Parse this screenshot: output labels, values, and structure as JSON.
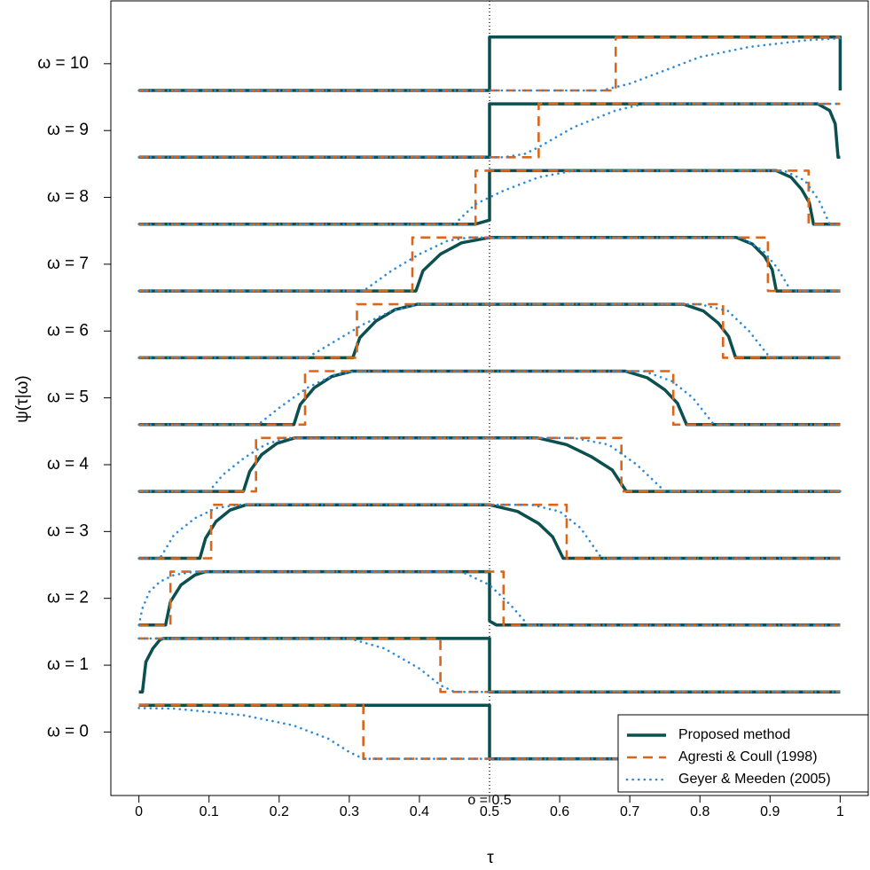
{
  "chart_data": {
    "type": "line",
    "x_label": "τ",
    "y_label": "ψ(τ|ω)",
    "xlim": [
      -0.04,
      1.04
    ],
    "ylim": [
      -0.95,
      10.94
    ],
    "xticks": [
      0,
      0.1,
      0.2,
      0.3,
      0.4,
      0.5,
      0.6,
      0.7,
      0.8,
      0.9,
      1
    ],
    "yticks": [
      {
        "value": 0,
        "label": "ω = 0"
      },
      {
        "value": 1,
        "label": "ω = 1"
      },
      {
        "value": 2,
        "label": "ω = 2"
      },
      {
        "value": 3,
        "label": "ω = 3"
      },
      {
        "value": 4,
        "label": "ω = 4"
      },
      {
        "value": 5,
        "label": "ω = 5"
      },
      {
        "value": 6,
        "label": "ω = 6"
      },
      {
        "value": 7,
        "label": "ω = 7"
      },
      {
        "value": 8,
        "label": "ω = 8"
      },
      {
        "value": 9,
        "label": "ω = 9"
      },
      {
        "value": 10,
        "label": "ω = 10"
      }
    ],
    "vline": {
      "value": 0.5,
      "label": "o = 0.5"
    },
    "legend": "bottom-right",
    "series": [
      {
        "name": "Proposed method",
        "color": "#0b4f4f",
        "style": "solid",
        "curves": [
          {
            "x": [
              0,
              0.5,
              0.5,
              1
            ],
            "values": [
              0.4,
              0.4,
              -0.4,
              -0.4
            ]
          },
          {
            "x": [
              0,
              0.005,
              0.01,
              0.02,
              0.03,
              0.035,
              0.5,
              0.5,
              1
            ],
            "values": [
              0.6,
              0.6,
              1.05,
              1.25,
              1.38,
              1.4,
              1.4,
              0.6,
              0.6
            ]
          },
          {
            "x": [
              0,
              0.038,
              0.045,
              0.06,
              0.08,
              0.095,
              0.5,
              0.5,
              0.51,
              1
            ],
            "values": [
              1.6,
              1.6,
              1.95,
              2.2,
              2.35,
              2.4,
              2.4,
              1.66,
              1.6,
              1.6
            ]
          },
          {
            "x": [
              0,
              0.087,
              0.095,
              0.11,
              0.13,
              0.153,
              0.5,
              0.54,
              0.57,
              0.59,
              0.605,
              1
            ],
            "values": [
              2.6,
              2.6,
              2.9,
              3.15,
              3.32,
              3.4,
              3.4,
              3.3,
              3.12,
              2.92,
              2.6,
              2.6
            ]
          },
          {
            "x": [
              0,
              0.149,
              0.158,
              0.175,
              0.197,
              0.222,
              0.569,
              0.61,
              0.645,
              0.675,
              0.695,
              1
            ],
            "values": [
              3.6,
              3.6,
              3.9,
              4.15,
              4.32,
              4.4,
              4.4,
              4.3,
              4.12,
              3.92,
              3.6,
              3.6
            ]
          },
          {
            "x": [
              0,
              0.221,
              0.23,
              0.25,
              0.275,
              0.304,
              0.694,
              0.725,
              0.75,
              0.768,
              0.781,
              1
            ],
            "values": [
              4.6,
              4.6,
              4.9,
              5.15,
              5.32,
              5.4,
              5.4,
              5.3,
              5.12,
              4.92,
              4.6,
              4.6
            ]
          },
          {
            "x": [
              0,
              0.305,
              0.315,
              0.338,
              0.365,
              0.397,
              0.777,
              0.805,
              0.826,
              0.841,
              0.851,
              1
            ],
            "values": [
              5.6,
              5.6,
              5.9,
              6.15,
              6.32,
              6.4,
              6.4,
              6.3,
              6.12,
              5.92,
              5.6,
              5.6
            ]
          },
          {
            "x": [
              0,
              0.395,
              0.405,
              0.43,
              0.46,
              0.5,
              0.852,
              0.875,
              0.892,
              0.903,
              0.909,
              1
            ],
            "values": [
              6.6,
              6.6,
              6.9,
              7.15,
              7.32,
              7.4,
              7.4,
              7.3,
              7.12,
              6.92,
              6.6,
              6.6
            ]
          },
          {
            "x": [
              0,
              0.48,
              0.5,
              0.5,
              0.909,
              0.93,
              0.945,
              0.956,
              0.962,
              1
            ],
            "values": [
              7.6,
              7.6,
              7.66,
              8.4,
              8.4,
              8.3,
              8.12,
              7.92,
              7.6,
              7.6
            ]
          },
          {
            "x": [
              0,
              0.5,
              0.5,
              0.968,
              0.985,
              0.993,
              0.997,
              1,
              1
            ],
            "values": [
              8.6,
              8.6,
              9.4,
              9.4,
              9.3,
              9.1,
              8.6,
              8.6,
              8.6
            ]
          },
          {
            "x": [
              0,
              0.5,
              0.5,
              1,
              1
            ],
            "values": [
              9.6,
              9.6,
              10.4,
              10.4,
              9.6
            ]
          }
        ]
      },
      {
        "name": "Agresti & Coull (1998)",
        "color": "#d9661a",
        "style": "dashed",
        "curves": [
          {
            "x": [
              0,
              0.32,
              0.32,
              1
            ],
            "values": [
              0.4,
              0.4,
              -0.4,
              -0.4
            ]
          },
          {
            "x": [
              0,
              0.43,
              0.43,
              1
            ],
            "values": [
              1.4,
              1.4,
              0.6,
              0.6
            ]
          },
          {
            "x": [
              0,
              0.045,
              0.045,
              0.52,
              0.52,
              1
            ],
            "values": [
              1.6,
              1.6,
              2.4,
              2.4,
              1.6,
              1.6
            ]
          },
          {
            "x": [
              0,
              0.103,
              0.103,
              0.61,
              0.61,
              1
            ],
            "values": [
              2.6,
              2.6,
              3.4,
              3.4,
              2.6,
              2.6
            ]
          },
          {
            "x": [
              0,
              0.167,
              0.167,
              0.688,
              0.688,
              1
            ],
            "values": [
              3.6,
              3.6,
              4.4,
              4.4,
              3.6,
              3.6
            ]
          },
          {
            "x": [
              0,
              0.237,
              0.237,
              0.762,
              0.762,
              1
            ],
            "values": [
              4.6,
              4.6,
              5.4,
              5.4,
              4.6,
              4.6
            ]
          },
          {
            "x": [
              0,
              0.311,
              0.311,
              0.833,
              0.833,
              1
            ],
            "values": [
              5.6,
              5.6,
              6.4,
              6.4,
              5.6,
              5.6
            ]
          },
          {
            "x": [
              0,
              0.39,
              0.39,
              0.897,
              0.897,
              1
            ],
            "values": [
              6.6,
              6.6,
              7.4,
              7.4,
              6.6,
              6.6
            ]
          },
          {
            "x": [
              0,
              0.48,
              0.48,
              0.955,
              0.955,
              1
            ],
            "values": [
              7.6,
              7.6,
              8.4,
              8.4,
              7.6,
              7.6
            ]
          },
          {
            "x": [
              0,
              0.57,
              0.57,
              1
            ],
            "values": [
              8.6,
              8.6,
              9.4,
              9.4
            ]
          },
          {
            "x": [
              0,
              0.68,
              0.68,
              1
            ],
            "values": [
              9.6,
              9.6,
              10.4,
              10.4
            ]
          }
        ]
      },
      {
        "name": "Geyer & Meeden (2005)",
        "color": "#2b8ad8",
        "style": "dotted",
        "curves": [
          {
            "x": [
              0,
              0.05,
              0.15,
              0.22,
              0.27,
              0.3,
              0.32,
              1
            ],
            "values": [
              0.36,
              0.35,
              0.25,
              0.1,
              -0.1,
              -0.3,
              -0.4,
              -0.4
            ]
          },
          {
            "x": [
              0,
              0.3,
              0.35,
              0.4,
              0.43,
              0.45,
              1
            ],
            "values": [
              1.4,
              1.4,
              1.25,
              0.95,
              0.7,
              0.6,
              0.6
            ]
          },
          {
            "x": [
              0,
              0.005,
              0.015,
              0.03,
              0.05,
              0.08,
              0.46,
              0.5,
              0.53,
              0.555,
              1
            ],
            "values": [
              1.6,
              1.85,
              2.1,
              2.25,
              2.35,
              2.4,
              2.4,
              2.2,
              1.9,
              1.6,
              1.6
            ]
          },
          {
            "x": [
              0,
              0.03,
              0.05,
              0.08,
              0.11,
              0.14,
              0.56,
              0.6,
              0.63,
              0.66,
              1
            ],
            "values": [
              2.6,
              2.6,
              2.95,
              3.2,
              3.35,
              3.4,
              3.4,
              3.3,
              3.05,
              2.6,
              2.6
            ]
          },
          {
            "x": [
              0,
              0.1,
              0.12,
              0.15,
              0.18,
              0.21,
              0.62,
              0.67,
              0.71,
              0.75,
              1
            ],
            "values": [
              3.6,
              3.6,
              3.85,
              4.1,
              4.3,
              4.4,
              4.4,
              4.3,
              4.0,
              3.6,
              3.6
            ]
          },
          {
            "x": [
              0,
              0.17,
              0.2,
              0.24,
              0.28,
              0.31,
              0.72,
              0.76,
              0.79,
              0.82,
              1
            ],
            "values": [
              4.6,
              4.6,
              4.85,
              5.15,
              5.35,
              5.4,
              5.4,
              5.25,
              5.0,
              4.6,
              4.6
            ]
          },
          {
            "x": [
              0,
              0.24,
              0.28,
              0.32,
              0.36,
              0.4,
              0.8,
              0.84,
              0.87,
              0.9,
              1
            ],
            "values": [
              5.6,
              5.6,
              5.85,
              6.1,
              6.3,
              6.4,
              6.4,
              6.3,
              6.0,
              5.6,
              5.6
            ]
          },
          {
            "x": [
              0,
              0.32,
              0.36,
              0.4,
              0.44,
              0.47,
              0.86,
              0.89,
              0.91,
              0.93,
              1
            ],
            "values": [
              6.6,
              6.6,
              6.9,
              7.15,
              7.35,
              7.4,
              7.4,
              7.2,
              6.95,
              6.6,
              6.6
            ]
          },
          {
            "x": [
              0,
              0.45,
              0.48,
              0.52,
              0.57,
              0.62,
              0.92,
              0.95,
              0.97,
              0.985,
              1
            ],
            "values": [
              7.6,
              7.6,
              7.9,
              8.1,
              8.3,
              8.4,
              8.4,
              8.25,
              7.95,
              7.6,
              7.6
            ]
          },
          {
            "x": [
              0,
              0.52,
              0.55,
              0.57,
              0.62,
              0.68,
              0.72,
              1
            ],
            "values": [
              8.6,
              8.6,
              8.65,
              8.75,
              9.05,
              9.3,
              9.4,
              9.4
            ]
          },
          {
            "x": [
              0,
              0.66,
              0.7,
              0.75,
              0.8,
              0.87,
              0.95,
              1
            ],
            "values": [
              9.6,
              9.6,
              9.7,
              9.9,
              10.1,
              10.25,
              10.35,
              10.38
            ]
          }
        ]
      }
    ]
  }
}
